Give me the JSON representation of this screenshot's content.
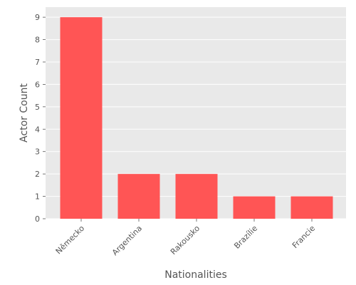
{
  "chart_data": {
    "type": "bar",
    "categories": [
      "Německo",
      "Argentina",
      "Rakousko",
      "Brazílie",
      "Francie"
    ],
    "values": [
      9,
      2,
      2,
      1,
      1
    ],
    "xlabel": "Nationalities",
    "ylabel": "Actor Count",
    "ylim": [
      0,
      9.45
    ],
    "yticks": [
      0,
      1,
      2,
      3,
      4,
      5,
      6,
      7,
      8,
      9
    ],
    "grid": true,
    "colors": {
      "bar": "#ff5555",
      "background": "#e9e9e9",
      "grid": "#ffffff",
      "text": "#555555"
    }
  }
}
